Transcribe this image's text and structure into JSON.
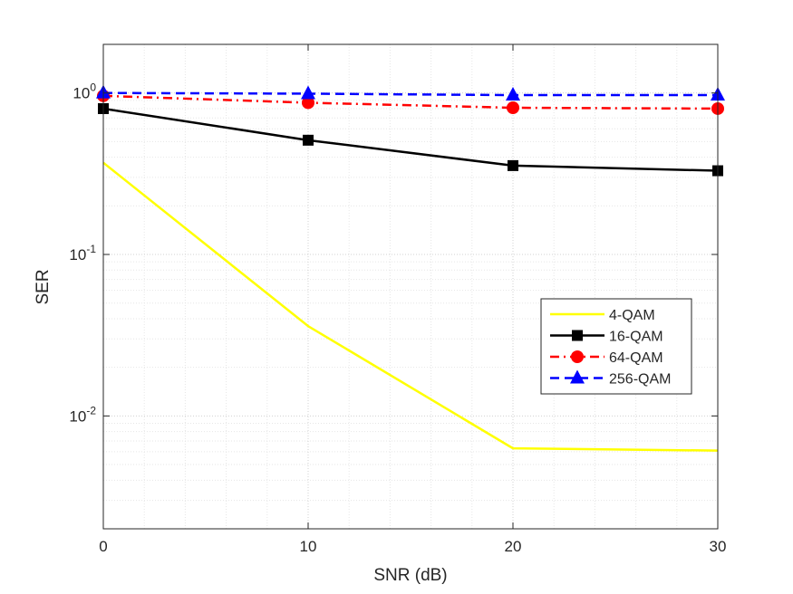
{
  "chart_data": {
    "type": "line",
    "title": "",
    "xlabel": "SNR (dB)",
    "ylabel": "SER",
    "xlim": [
      0,
      30
    ],
    "ylim": [
      0.002,
      2
    ],
    "yscale": "log",
    "grid": true,
    "minor_grid": true,
    "legend_position": "right, vertically centered",
    "x_ticks": [
      0,
      10,
      20,
      30
    ],
    "x_tick_labels": [
      "0",
      "10",
      "20",
      "30"
    ],
    "y_ticks": [
      0.01,
      0.1,
      1
    ],
    "y_tick_labels": [
      {
        "base": "10",
        "exp": "-2"
      },
      {
        "base": "10",
        "exp": "-1"
      },
      {
        "base": "10",
        "exp": "0"
      }
    ],
    "x": [
      0,
      10,
      20,
      30
    ],
    "series": [
      {
        "name": "4-QAM",
        "values": [
          0.37,
          0.036,
          0.0063,
          0.0061
        ],
        "color": "#ffff00",
        "dash": "solid",
        "marker": "none"
      },
      {
        "name": "16-QAM",
        "values": [
          0.8,
          0.51,
          0.355,
          0.33
        ],
        "color": "#000000",
        "dash": "solid",
        "marker": "square"
      },
      {
        "name": "64-QAM",
        "values": [
          0.96,
          0.87,
          0.81,
          0.8
        ],
        "color": "#ff0000",
        "dash": "dashdot",
        "marker": "circle"
      },
      {
        "name": "256-QAM",
        "values": [
          1.0,
          0.99,
          0.97,
          0.97
        ],
        "color": "#0000ff",
        "dash": "dashed",
        "marker": "triangle"
      }
    ]
  }
}
